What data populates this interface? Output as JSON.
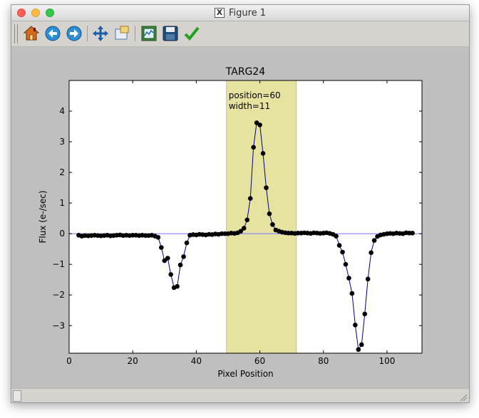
{
  "window": {
    "title": "Figure 1"
  },
  "toolbar": {
    "buttons": [
      {
        "icon": "home-icon"
      },
      {
        "icon": "back-arrow-icon"
      },
      {
        "icon": "forward-arrow-icon"
      },
      {
        "icon": "pan-icon"
      },
      {
        "icon": "zoom-icon"
      },
      {
        "icon": "subplots-icon"
      },
      {
        "icon": "save-icon"
      },
      {
        "icon": "checkmark-icon"
      }
    ]
  },
  "colors": {
    "line": "#000080",
    "marker": "#000000",
    "zero_line": "#8080ff",
    "band": "#e6e3a0"
  },
  "chart_data": {
    "type": "line",
    "title": "TARG24",
    "xlabel": "Pixel Position",
    "ylabel": "Flux (e-/sec)",
    "xlim": [
      0,
      111
    ],
    "ylim": [
      -3.9,
      5.0
    ],
    "xticks": [
      0,
      20,
      40,
      60,
      80,
      100
    ],
    "yticks": [
      -3,
      -2,
      -1,
      0,
      1,
      2,
      3,
      4
    ],
    "grid": false,
    "zero_line": 0,
    "highlight_band": {
      "x0": 49.5,
      "x1": 71.5
    },
    "annotation": [
      "position=60",
      "width=11"
    ],
    "x": [
      3,
      4,
      5,
      6,
      7,
      8,
      9,
      10,
      11,
      12,
      13,
      14,
      15,
      16,
      17,
      18,
      19,
      20,
      21,
      22,
      23,
      24,
      25,
      26,
      27,
      28,
      29,
      30,
      31,
      32,
      33,
      34,
      35,
      36,
      37,
      38,
      39,
      40,
      41,
      42,
      43,
      44,
      45,
      46,
      47,
      48,
      49,
      50,
      51,
      52,
      53,
      54,
      55,
      56,
      57,
      58,
      59,
      60,
      61,
      62,
      63,
      64,
      65,
      66,
      67,
      68,
      69,
      70,
      71,
      72,
      73,
      74,
      75,
      76,
      77,
      78,
      79,
      80,
      81,
      82,
      83,
      84,
      85,
      86,
      87,
      88,
      89,
      90,
      91,
      92,
      93,
      94,
      95,
      96,
      97,
      98,
      99,
      100,
      101,
      102,
      103,
      104,
      105,
      106,
      107,
      108
    ],
    "y": [
      -0.05,
      -0.08,
      -0.06,
      -0.07,
      -0.06,
      -0.05,
      -0.06,
      -0.07,
      -0.06,
      -0.05,
      -0.07,
      -0.06,
      -0.05,
      -0.04,
      -0.06,
      -0.05,
      -0.06,
      -0.05,
      -0.05,
      -0.06,
      -0.05,
      -0.06,
      -0.06,
      -0.05,
      -0.08,
      -0.12,
      -0.45,
      -0.88,
      -0.8,
      -1.33,
      -1.76,
      -1.72,
      -1.02,
      -0.75,
      -0.3,
      -0.05,
      -0.03,
      -0.04,
      -0.02,
      -0.03,
      -0.04,
      -0.02,
      -0.03,
      -0.01,
      -0.02,
      0.0,
      0.0,
      0.0,
      0.02,
      0.01,
      0.03,
      0.08,
      0.18,
      0.45,
      1.15,
      2.82,
      3.62,
      3.55,
      2.62,
      1.5,
      0.65,
      0.3,
      0.12,
      0.08,
      0.05,
      0.03,
      0.02,
      0.02,
      0.01,
      0.02,
      0.02,
      0.03,
      0.02,
      0.01,
      0.03,
      0.02,
      0.01,
      0.02,
      0.03,
      0.01,
      -0.02,
      -0.08,
      -0.38,
      -0.6,
      -1.0,
      -1.45,
      -1.95,
      -2.98,
      -3.78,
      -3.62,
      -2.62,
      -1.48,
      -0.62,
      -0.22,
      -0.09,
      -0.04,
      -0.02,
      0.0,
      0.01,
      0.0,
      0.02,
      0.01,
      0.0,
      0.03,
      0.02,
      0.02
    ]
  }
}
